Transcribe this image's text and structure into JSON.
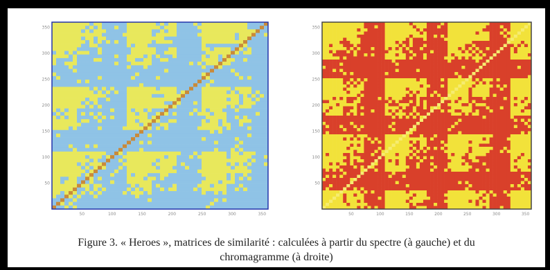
{
  "figure": {
    "caption_line1": "Figure 3. « Heroes », matrices de similarité : calculées à partir du spectre (à gauche) et du",
    "caption_line2": "chromagramme (à droite)"
  },
  "chart_data": [
    {
      "type": "heatmap",
      "title": "",
      "xlabel": "",
      "ylabel": "",
      "x_ticks": [
        "50",
        "100",
        "150",
        "200",
        "250",
        "300",
        "350"
      ],
      "y_ticks": [
        "50",
        "100",
        "150",
        "200",
        "250",
        "300",
        "350"
      ],
      "xlim": [
        0,
        360
      ],
      "ylim": [
        0,
        360
      ],
      "colors": {
        "low": "#8fc3e6",
        "high": "#e8e85c",
        "diagonal": "#c98a3a",
        "border": "#2233aa"
      }
    },
    {
      "type": "heatmap",
      "title": "",
      "xlabel": "",
      "ylabel": "",
      "x_ticks": [
        "50",
        "100",
        "150",
        "200",
        "250",
        "300",
        "350"
      ],
      "y_ticks": [
        "50",
        "100",
        "150",
        "200",
        "250",
        "300",
        "350"
      ],
      "xlim": [
        0,
        360
      ],
      "ylim": [
        0,
        360
      ],
      "colors": {
        "low": "#d9402a",
        "high": "#f2e23a",
        "diagonal": "#f6ec70",
        "border": "#444444"
      }
    }
  ]
}
